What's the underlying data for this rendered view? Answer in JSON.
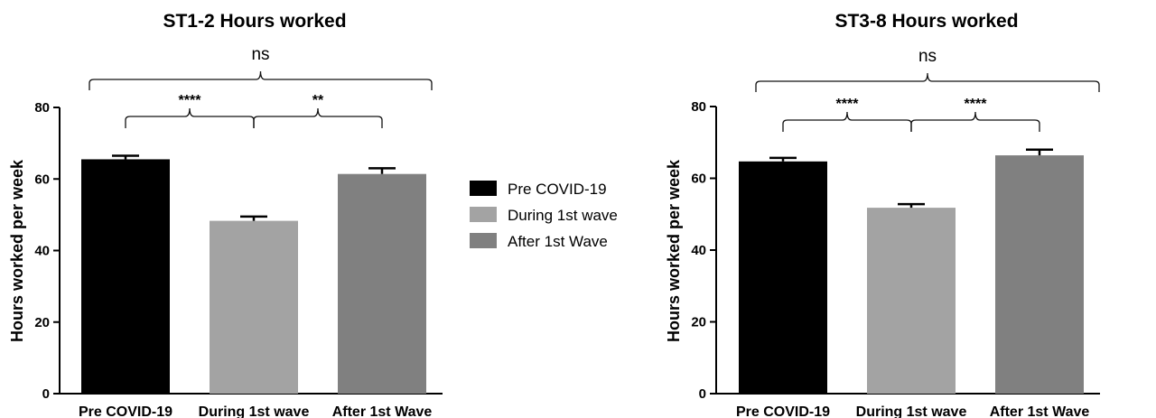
{
  "colors": {
    "pre": "#000000",
    "during": "#a3a3a3",
    "after": "#808080"
  },
  "legend": {
    "items": [
      {
        "label": "Pre COVID-19",
        "color": "#000000"
      },
      {
        "label": "During 1st wave",
        "color": "#a3a3a3"
      },
      {
        "label": "After 1st Wave",
        "color": "#808080"
      }
    ]
  },
  "chart_data": [
    {
      "type": "bar",
      "title": "ST1-2 Hours worked",
      "ylabel": "Hours worked per week",
      "xlabel": "",
      "ylim": [
        0,
        80
      ],
      "yticks": [
        "0",
        "20",
        "40",
        "60",
        "80"
      ],
      "categories": [
        "Pre COVID-19",
        "During 1st wave",
        "After 1st Wave"
      ],
      "values": [
        65.5,
        48.3,
        61.4
      ],
      "errors": [
        1.0,
        1.2,
        1.6
      ],
      "significance": [
        {
          "from": 0,
          "to": 1,
          "label": "****"
        },
        {
          "from": 1,
          "to": 2,
          "label": "**"
        },
        {
          "from": 0,
          "to": 2,
          "label": "ns"
        }
      ]
    },
    {
      "type": "bar",
      "title": "ST3-8 Hours worked",
      "ylabel": "Hours worked per week",
      "xlabel": "",
      "ylim": [
        0,
        80
      ],
      "yticks": [
        "0",
        "20",
        "40",
        "60",
        "80"
      ],
      "categories": [
        "Pre COVID-19",
        "During 1st wave",
        "After 1st Wave"
      ],
      "values": [
        64.7,
        51.8,
        66.4
      ],
      "errors": [
        1.0,
        1.0,
        1.6
      ],
      "significance": [
        {
          "from": 0,
          "to": 1,
          "label": "****"
        },
        {
          "from": 1,
          "to": 2,
          "label": "****"
        },
        {
          "from": 0,
          "to": 2,
          "label": "ns"
        }
      ]
    }
  ]
}
